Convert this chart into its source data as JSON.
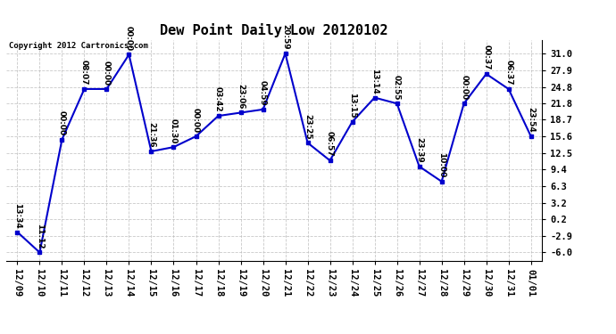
{
  "title": "Dew Point Daily Low 20120102",
  "copyright": "Copyright 2012 Cartronics.com",
  "x_labels": [
    "12/09",
    "12/10",
    "12/11",
    "12/12",
    "12/13",
    "12/14",
    "12/15",
    "12/16",
    "12/17",
    "12/18",
    "12/19",
    "12/20",
    "12/21",
    "12/22",
    "12/23",
    "12/24",
    "12/25",
    "12/26",
    "12/27",
    "12/28",
    "12/29",
    "12/30",
    "12/31",
    "01/01"
  ],
  "y_values": [
    -2.2,
    -6.0,
    15.0,
    24.4,
    24.4,
    30.8,
    12.8,
    13.6,
    15.6,
    19.4,
    20.0,
    20.6,
    31.0,
    14.4,
    11.1,
    18.3,
    22.8,
    21.7,
    10.0,
    7.2,
    21.7,
    27.2,
    24.4,
    15.6
  ],
  "point_labels": [
    "13:34",
    "11:12",
    "00:00",
    "08:07",
    "00:00",
    "00:00",
    "21:36",
    "01:30",
    "00:00",
    "03:42",
    "23:06",
    "04:59",
    "20:59",
    "23:25",
    "06:57",
    "13:15",
    "13:14",
    "02:55",
    "23:39",
    "10:00",
    "00:00",
    "00:37",
    "06:37",
    "23:54"
  ],
  "y_ticks": [
    -6.0,
    -2.9,
    0.2,
    3.2,
    6.3,
    9.4,
    12.5,
    15.6,
    18.7,
    21.8,
    24.8,
    27.9,
    31.0
  ],
  "line_color": "#0000cc",
  "marker_color": "#0000cc",
  "bg_color": "#ffffff",
  "grid_color": "#bbbbbb",
  "title_fontsize": 11,
  "label_fontsize": 6.5,
  "tick_fontsize": 7.5,
  "ylim": [
    -7.5,
    33.5
  ]
}
